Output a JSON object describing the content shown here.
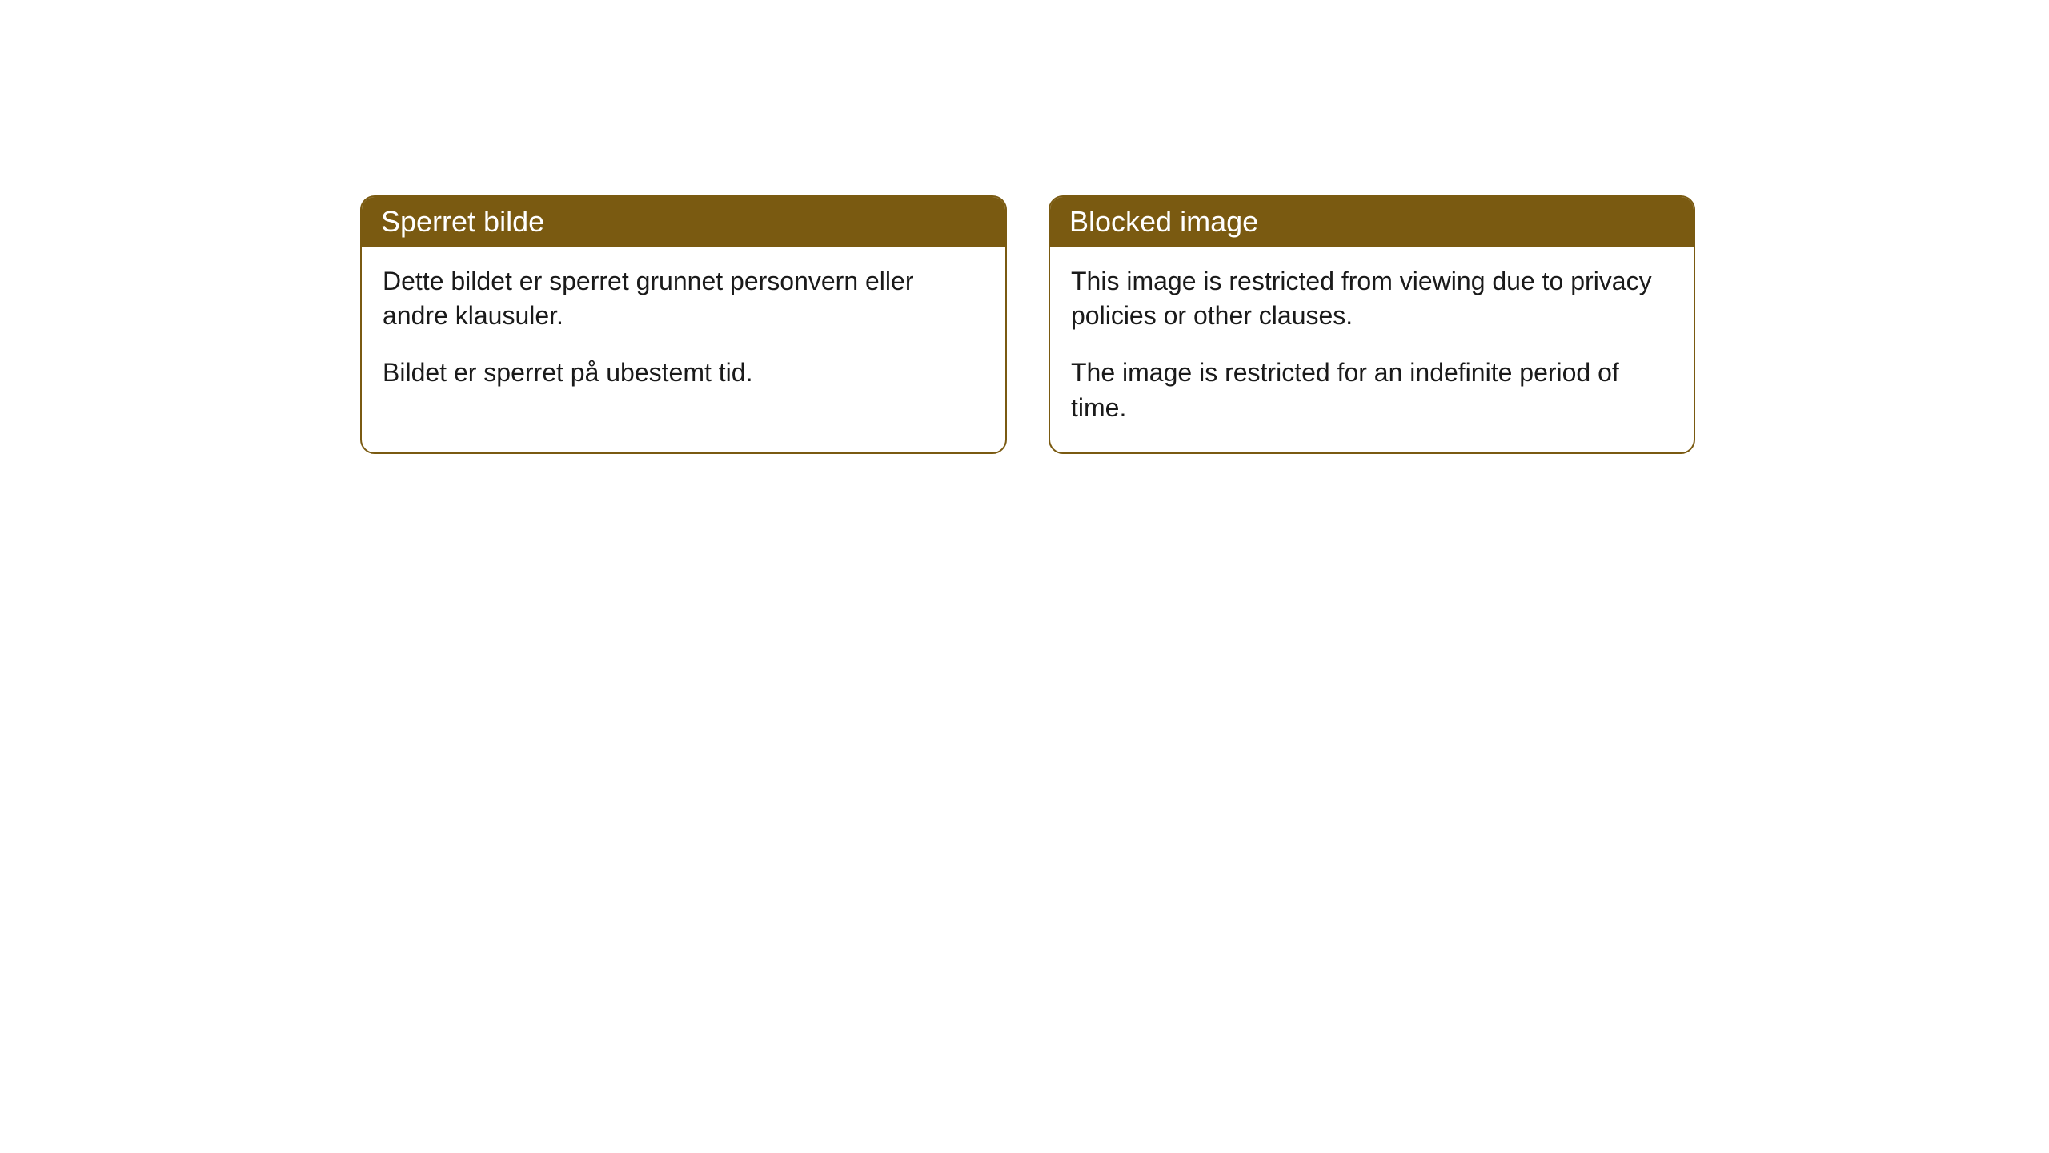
{
  "cards": [
    {
      "title": "Sperret bilde",
      "paragraph1": "Dette bildet er sperret grunnet personvern eller andre klausuler.",
      "paragraph2": "Bildet er sperret på ubestemt tid."
    },
    {
      "title": "Blocked image",
      "paragraph1": "This image is restricted from viewing due to privacy policies or other clauses.",
      "paragraph2": "The image is restricted for an indefinite period of time."
    }
  ],
  "styling": {
    "header_background": "#7a5a11",
    "header_text_color": "#ffffff",
    "border_color": "#7a5a11",
    "body_background": "#ffffff",
    "body_text_color": "#1a1a1a",
    "border_radius": 18,
    "header_fontsize": 36,
    "body_fontsize": 32
  }
}
